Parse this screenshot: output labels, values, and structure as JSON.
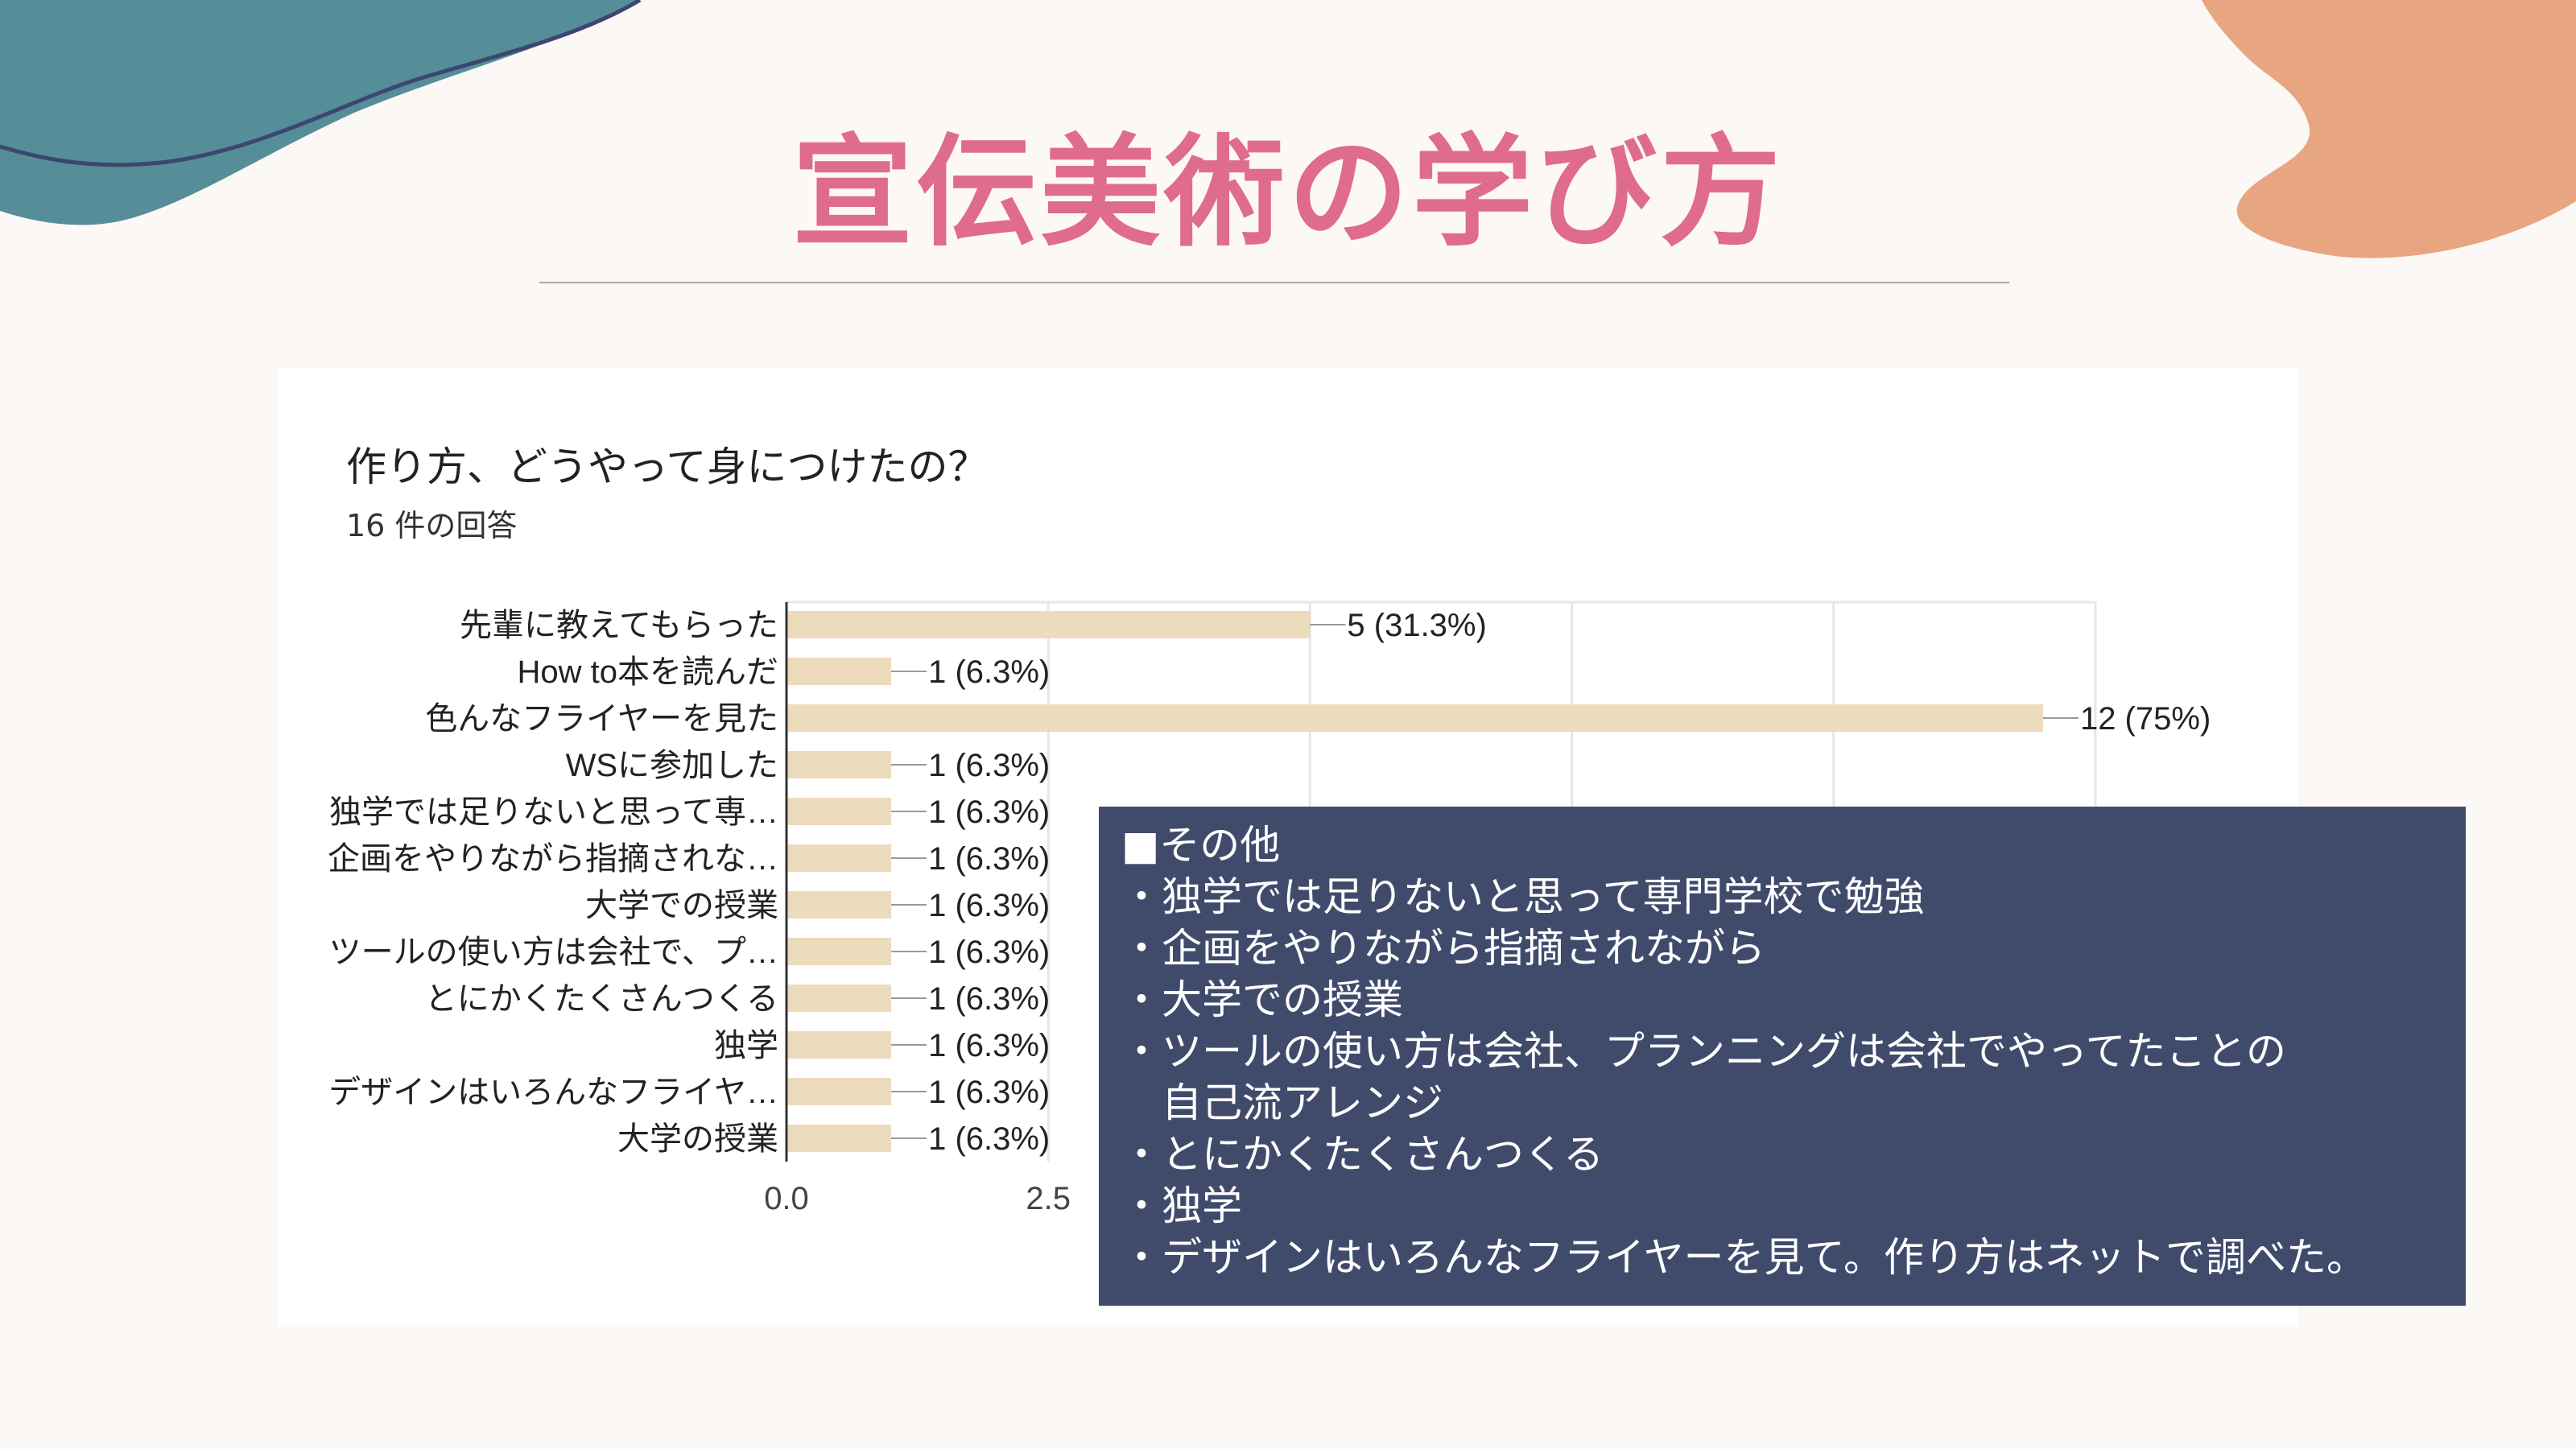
{
  "slide": {
    "title": "宣伝美術の学び方"
  },
  "theme": {
    "title_color": "#df6c8e",
    "bar_color": "#ecdbbd",
    "note_bg": "#404b6c",
    "teal": "#558d98",
    "peach": "#e8a582",
    "navy_line": "#3d4670"
  },
  "chart_data": {
    "type": "bar",
    "orientation": "horizontal",
    "title": "作り方、どうやって身につけたの？",
    "subtitle": "16 件の回答",
    "categories": [
      "先輩に教えてもらった",
      "How to本を読んだ",
      "色んなフライヤーを見た",
      "WSに参加した",
      "独学では足りないと思って専…",
      "企画をやりながら指摘されな…",
      "大学での授業",
      "ツールの使い方は会社で、プ…",
      "とにかくたくさんつくる",
      "独学",
      "デザインはいろんなフライヤ…",
      "大学の授業"
    ],
    "values": [
      5,
      1,
      12,
      1,
      1,
      1,
      1,
      1,
      1,
      1,
      1,
      1
    ],
    "data_labels": [
      "5 (31.3%)",
      "1 (6.3%)",
      "12 (75%)",
      "1 (6.3%)",
      "1 (6.3%)",
      "1 (6.3%)",
      "1 (6.3%)",
      "1 (6.3%)",
      "1 (6.3%)",
      "1 (6.3%)",
      "1 (6.3%)",
      "1 (6.3%)"
    ],
    "x_ticks": [
      "0.0",
      "2.5"
    ],
    "xlim": [
      0,
      12.5
    ],
    "grid": true
  },
  "note": {
    "heading": "■その他",
    "items": [
      "・独学では足りないと思って専門学校で勉強",
      "・企画をやりながら指摘されながら",
      "・大学での授業",
      "・ツールの使い方は会社、プランニングは会社でやってたことの\n　自己流アレンジ",
      "・とにかくたくさんつくる",
      "・独学",
      "・デザインはいろんなフライヤーを見て。作り方はネットで調べた。"
    ]
  }
}
